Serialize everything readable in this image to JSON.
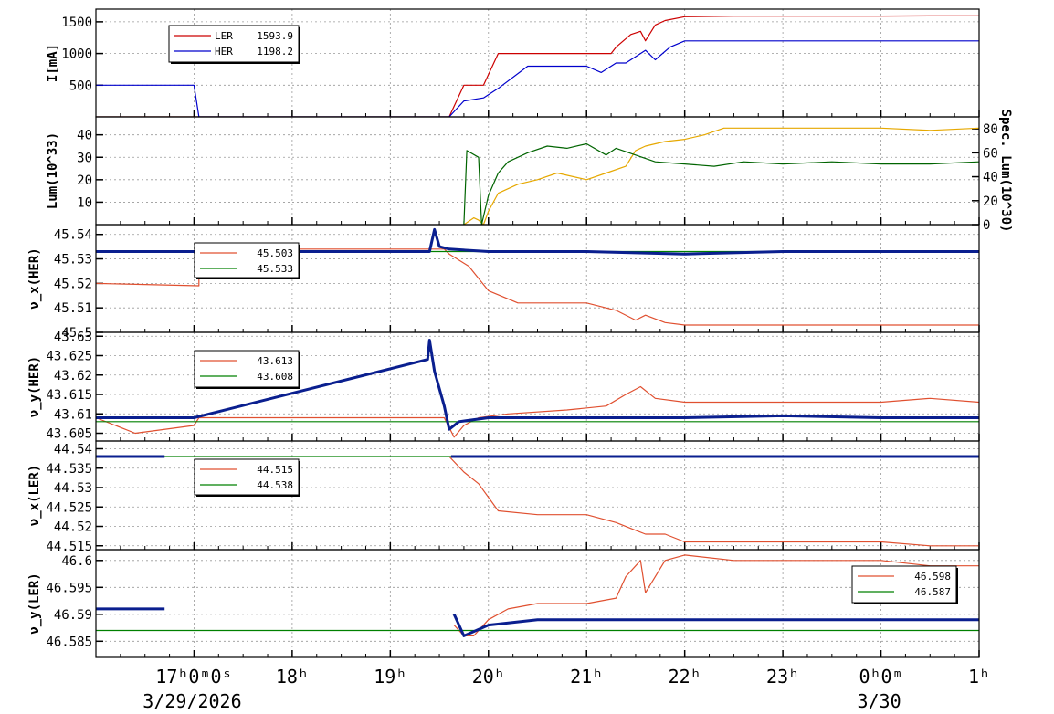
{
  "chart_data": [
    {
      "type": "line",
      "panel": "beam-current",
      "ylabel": "I[mA]",
      "yticks": [
        "500",
        "1000",
        "1500"
      ],
      "ylim": [
        0,
        1700
      ],
      "legend": [
        {
          "name": "LER",
          "value": "1593.9",
          "color": "#cc0000"
        },
        {
          "name": "HER",
          "value": "1198.2",
          "color": "#0000cc"
        }
      ],
      "series": [
        {
          "name": "LER",
          "color": "#cc0000",
          "x": [
            16.0,
            17.0,
            17.0,
            19.6,
            19.75,
            19.95,
            20.1,
            20.5,
            21.25,
            21.3,
            21.45,
            21.55,
            21.6,
            21.7,
            21.8,
            22.0,
            22.5,
            23.0,
            23.5,
            24.0,
            24.5,
            25.0
          ],
          "y": [
            0,
            0,
            0,
            0,
            500,
            500,
            1000,
            1000,
            1000,
            1100,
            1300,
            1350,
            1200,
            1450,
            1520,
            1580,
            1590,
            1590,
            1590,
            1590,
            1593,
            1594
          ]
        },
        {
          "name": "HER",
          "color": "#0000cc",
          "x": [
            16.0,
            17.0,
            17.05,
            19.6,
            19.75,
            19.95,
            20.1,
            20.4,
            21.0,
            21.15,
            21.3,
            21.4,
            21.6,
            21.7,
            21.85,
            22.0,
            22.5,
            23.0,
            24.0,
            25.0
          ],
          "y": [
            500,
            500,
            0,
            0,
            250,
            300,
            450,
            800,
            800,
            700,
            850,
            850,
            1050,
            900,
            1100,
            1198,
            1198,
            1198,
            1198,
            1198
          ]
        }
      ]
    },
    {
      "type": "line",
      "panel": "luminosity",
      "ylabel": "Lum(10^33)",
      "yticks": [
        "10",
        "20",
        "30",
        "40"
      ],
      "ylim": [
        0,
        48
      ],
      "ylabel_right": "Spec. Lum(10^30)",
      "yticks_right": [
        "0",
        "20",
        "40",
        "60",
        "80"
      ],
      "ylim_right": [
        0,
        90
      ],
      "series": [
        {
          "name": "",
          "color": "#e6a800",
          "x": [
            19.75,
            19.85,
            19.9,
            19.95,
            20.0,
            20.1,
            20.3,
            20.5,
            20.7,
            21.0,
            21.2,
            21.4,
            21.5,
            21.6,
            21.8,
            22.0,
            22.2,
            22.4,
            23.0,
            23.5,
            24.0,
            24.5,
            25.0
          ],
          "y": [
            0,
            3,
            2,
            0,
            6,
            14,
            18,
            20,
            23,
            20,
            23,
            26,
            33,
            35,
            37,
            38,
            40,
            43,
            43,
            43,
            43,
            42,
            43
          ]
        },
        {
          "name": "",
          "color": "#006400",
          "x": [
            19.75,
            19.78,
            19.9,
            19.93,
            20.0,
            20.1,
            20.2,
            20.4,
            20.6,
            20.8,
            21.0,
            21.2,
            21.3,
            21.5,
            21.7,
            22.0,
            22.3,
            22.6,
            23.0,
            23.5,
            24.0,
            24.5,
            25.0
          ],
          "y": [
            0,
            33,
            30,
            0,
            13,
            23,
            28,
            32,
            35,
            34,
            36,
            31,
            34,
            31,
            28,
            27,
            26,
            28,
            27,
            28,
            27,
            27,
            28
          ]
        }
      ]
    },
    {
      "type": "line",
      "panel": "nux-her",
      "ylabel": "ν_x(HER)",
      "yticks": [
        "45.5",
        "45.51",
        "45.52",
        "45.53",
        "45.54"
      ],
      "ylim": [
        45.5,
        45.544
      ],
      "legend": [
        {
          "value": "45.503",
          "color": "#e05030"
        },
        {
          "value": "45.533",
          "color": "#008000"
        }
      ],
      "series": [
        {
          "name": "",
          "color": "#e05030",
          "x": [
            16.0,
            17.05,
            17.05,
            19.55,
            19.6,
            19.8,
            20.0,
            20.3,
            21.0,
            21.3,
            21.5,
            21.6,
            21.8,
            22.0,
            23.0,
            25.0
          ],
          "y": [
            45.52,
            45.519,
            45.534,
            45.534,
            45.532,
            45.527,
            45.517,
            45.512,
            45.512,
            45.509,
            45.505,
            45.507,
            45.504,
            45.503,
            45.503,
            45.503
          ]
        },
        {
          "name": "",
          "color": "#008000",
          "x": [
            16.0,
            25.0
          ],
          "y": [
            45.533,
            45.533
          ]
        },
        {
          "name": "",
          "color": "#0a1f8f",
          "x": [
            16.0,
            17.0,
            19.4,
            19.45,
            19.5,
            19.6,
            20.0,
            21.0,
            22.0,
            23.0,
            24.0,
            25.0
          ],
          "y": [
            45.533,
            45.533,
            45.533,
            45.542,
            45.535,
            45.534,
            45.533,
            45.533,
            45.532,
            45.533,
            45.533,
            45.533
          ]
        }
      ]
    },
    {
      "type": "line",
      "panel": "nuy-her",
      "ylabel": "ν_y(HER)",
      "yticks": [
        "43.605",
        "43.61",
        "43.615",
        "43.62",
        "43.625",
        "43.63"
      ],
      "ylim": [
        43.603,
        43.631
      ],
      "legend": [
        {
          "value": "43.613",
          "color": "#e05030"
        },
        {
          "value": "43.608",
          "color": "#008000"
        }
      ],
      "series": [
        {
          "name": "",
          "color": "#e05030",
          "x": [
            16.0,
            16.2,
            16.4,
            17.0,
            17.05,
            19.55,
            19.65,
            19.75,
            19.9,
            20.2,
            20.8,
            21.2,
            21.4,
            21.55,
            21.7,
            22.0,
            22.5,
            24.0,
            24.5,
            25.0
          ],
          "y": [
            43.609,
            43.607,
            43.605,
            43.607,
            43.609,
            43.609,
            43.604,
            43.607,
            43.609,
            43.61,
            43.611,
            43.612,
            43.615,
            43.617,
            43.614,
            43.613,
            43.613,
            43.613,
            43.614,
            43.613
          ]
        },
        {
          "name": "",
          "color": "#008000",
          "x": [
            16.0,
            25.0
          ],
          "y": [
            43.608,
            43.608
          ]
        },
        {
          "name": "",
          "color": "#0a1f8f",
          "x": [
            16.0,
            17.0,
            19.38,
            19.4,
            19.45,
            19.55,
            19.6,
            19.7,
            20.0,
            21.0,
            22.0,
            23.0,
            24.0,
            25.0
          ],
          "y": [
            43.609,
            43.609,
            43.624,
            43.629,
            43.621,
            43.612,
            43.606,
            43.608,
            43.609,
            43.609,
            43.609,
            43.6095,
            43.609,
            43.609
          ]
        }
      ]
    },
    {
      "type": "line",
      "panel": "nux-ler",
      "ylabel": "ν_x(LER)",
      "yticks": [
        "44.515",
        "44.52",
        "44.525",
        "44.53",
        "44.535",
        "44.54"
      ],
      "ylim": [
        44.514,
        44.542
      ],
      "legend": [
        {
          "value": "44.515",
          "color": "#e05030"
        },
        {
          "value": "44.538",
          "color": "#008000"
        }
      ],
      "series": [
        {
          "name": "",
          "color": "#e05030",
          "x": [
            19.6,
            19.75,
            19.9,
            20.1,
            20.5,
            21.0,
            21.3,
            21.5,
            21.6,
            21.8,
            22.0,
            23.0,
            24.0,
            24.5,
            25.0
          ],
          "y": [
            44.538,
            44.534,
            44.531,
            44.524,
            44.523,
            44.523,
            44.521,
            44.519,
            44.518,
            44.518,
            44.516,
            44.516,
            44.516,
            44.515,
            44.515
          ]
        },
        {
          "name": "",
          "color": "#008000",
          "x": [
            16.0,
            25.0
          ],
          "y": [
            44.538,
            44.538
          ]
        },
        {
          "name": "",
          "color": "#0a1f8f",
          "x": [
            16.0,
            16.7
          ],
          "y": [
            44.538,
            44.538
          ]
        },
        {
          "name": "",
          "color": "#0a1f8f",
          "x": [
            19.62,
            20.0,
            21.0,
            22.0,
            23.0,
            24.0,
            25.0
          ],
          "y": [
            44.538,
            44.538,
            44.538,
            44.538,
            44.538,
            44.538,
            44.538
          ]
        }
      ]
    },
    {
      "type": "line",
      "panel": "nuy-ler",
      "ylabel": "ν_y(LER)",
      "yticks": [
        "46.585",
        "46.59",
        "46.595",
        "46.6"
      ],
      "ylim": [
        46.582,
        46.602
      ],
      "legend": [
        {
          "value": "46.598",
          "color": "#e05030"
        },
        {
          "value": "46.587",
          "color": "#008000"
        }
      ],
      "series": [
        {
          "name": "",
          "color": "#e05030",
          "x": [
            19.65,
            19.75,
            19.85,
            20.0,
            20.2,
            20.5,
            21.0,
            21.3,
            21.4,
            21.55,
            21.6,
            21.8,
            22.0,
            22.5,
            23.0,
            24.0,
            24.5,
            25.0
          ],
          "y": [
            46.588,
            46.586,
            46.586,
            46.589,
            46.591,
            46.592,
            46.592,
            46.593,
            46.597,
            46.6,
            46.594,
            46.6,
            46.601,
            46.6,
            46.6,
            46.6,
            46.599,
            46.599
          ]
        },
        {
          "name": "",
          "color": "#008000",
          "x": [
            16.0,
            25.0
          ],
          "y": [
            46.587,
            46.587
          ]
        },
        {
          "name": "",
          "color": "#0a1f8f",
          "x": [
            16.0,
            16.7
          ],
          "y": [
            46.591,
            46.591
          ]
        },
        {
          "name": "",
          "color": "#0a1f8f",
          "x": [
            19.65,
            19.75,
            20.0,
            20.5,
            21.0,
            21.5,
            22.0,
            23.0,
            24.0,
            25.0
          ],
          "y": [
            46.59,
            46.586,
            46.588,
            46.589,
            46.589,
            46.589,
            46.589,
            46.589,
            46.589,
            46.589
          ]
        }
      ]
    }
  ],
  "time_axis": {
    "xlim": [
      16.0,
      25.0
    ],
    "ticks": [
      {
        "x": 17,
        "label": "17ʰ0ᵐ0ˢ"
      },
      {
        "x": 18,
        "label": "18ʰ"
      },
      {
        "x": 19,
        "label": "19ʰ"
      },
      {
        "x": 20,
        "label": "20ʰ"
      },
      {
        "x": 21,
        "label": "21ʰ"
      },
      {
        "x": 22,
        "label": "22ʰ"
      },
      {
        "x": 23,
        "label": "23ʰ"
      },
      {
        "x": 24,
        "label": "0ʰ0ᵐ"
      },
      {
        "x": 25,
        "label": "1ʰ"
      }
    ],
    "dates": [
      {
        "x": 17,
        "label": "3/29/2026"
      },
      {
        "x": 24,
        "label": "3/30"
      }
    ]
  }
}
